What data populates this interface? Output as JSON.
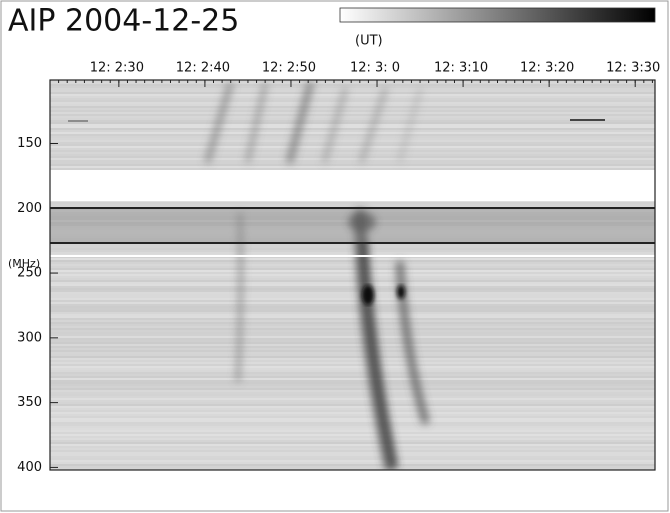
{
  "chart_data": {
    "type": "spectrogram",
    "title": "AIP 2004-12-25",
    "xlabel": "(UT)",
    "ylabel": "(MHz)",
    "xlim": [
      142,
      212.3
    ],
    "xticks": [
      {
        "value": 150,
        "label": "12: 2:30"
      },
      {
        "value": 160,
        "label": "12: 2:40"
      },
      {
        "value": 170,
        "label": "12: 2:50"
      },
      {
        "value": 180,
        "label": "12: 3: 0"
      },
      {
        "value": 190,
        "label": "12: 3:10"
      },
      {
        "value": 200,
        "label": "12: 3:20"
      },
      {
        "value": 210,
        "label": "12: 3:30"
      }
    ],
    "ylim": [
      402,
      101
    ],
    "yticks": [
      150,
      200,
      250,
      300,
      350,
      400
    ]
  }
}
